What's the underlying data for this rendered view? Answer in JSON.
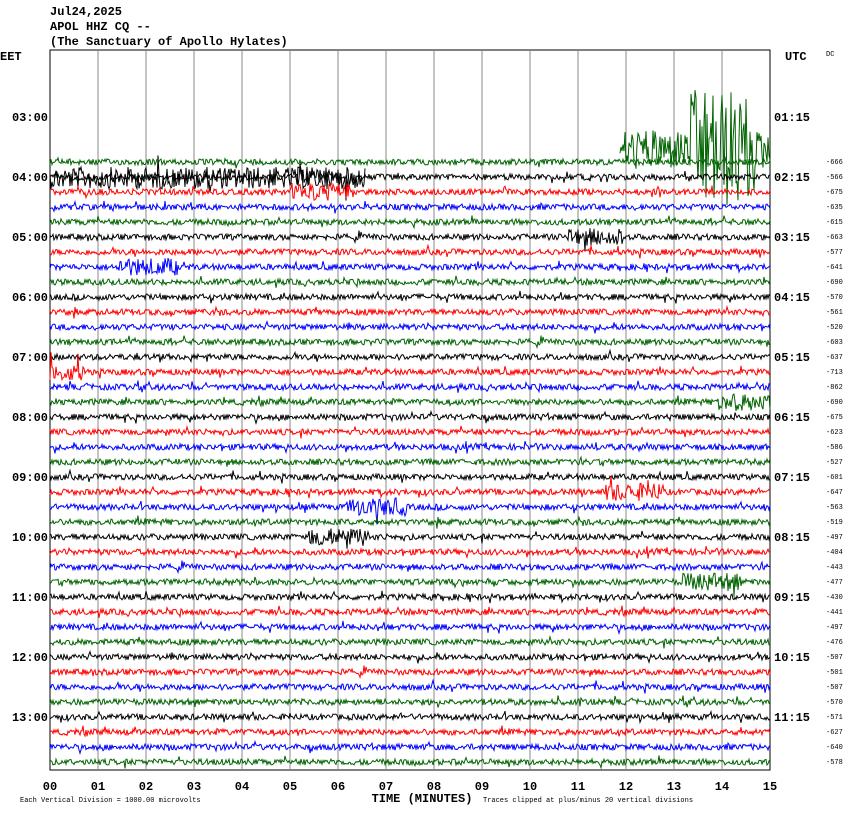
{
  "header": {
    "date": "Jul24,2025",
    "station": "APOL HHZ CQ --",
    "site": "(The Sanctuary of Apollo Hylates)"
  },
  "axes": {
    "left_label": "EET",
    "right_label": "UTC",
    "dc_label": "DC",
    "left_times": [
      "03:00",
      "04:00",
      "05:00",
      "06:00",
      "07:00",
      "08:00",
      "09:00",
      "10:00",
      "11:00",
      "12:00",
      "13:00"
    ],
    "right_times": [
      "01:15",
      "02:15",
      "03:15",
      "04:15",
      "05:15",
      "06:15",
      "07:15",
      "08:15",
      "09:15",
      "10:15",
      "11:15"
    ],
    "x_ticks": [
      "00",
      "01",
      "02",
      "03",
      "04",
      "05",
      "06",
      "07",
      "08",
      "09",
      "10",
      "11",
      "12",
      "13",
      "14",
      "15"
    ],
    "x_label": "TIME (MINUTES)"
  },
  "dc_values": [
    -666,
    -566,
    -675,
    -635,
    -615,
    -663,
    -577,
    -641,
    -690,
    -570,
    -561,
    -520,
    -603,
    -637,
    -713,
    -862,
    -690,
    -675,
    -623,
    -586,
    -527,
    -601,
    -647,
    -563,
    -519,
    -497,
    -404,
    -443,
    -477,
    -430,
    -441,
    -497,
    -476,
    -507,
    -501,
    -507,
    -570,
    -571,
    -627,
    -640,
    -578
  ],
  "footer": {
    "scale_note": "Each Vertical Division = 1000.00 microvolts",
    "clip_note": "Traces clipped at plus/minus 20 vertical divisions"
  }
}
